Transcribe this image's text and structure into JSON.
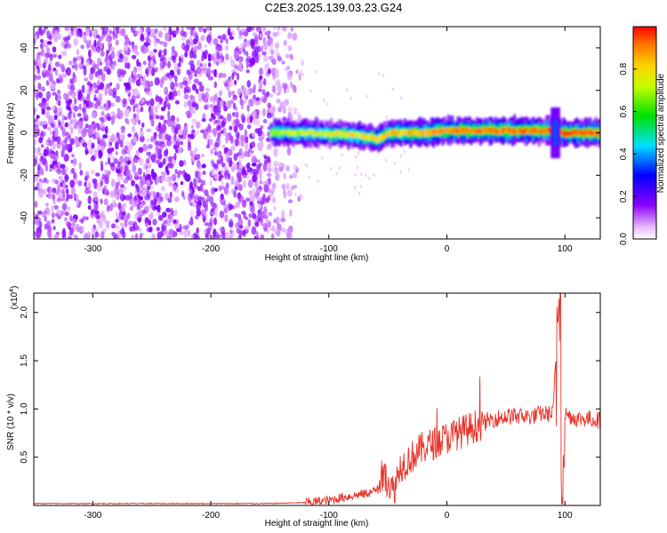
{
  "title": "C2E3.2025.139.03.23.G24",
  "colors": {
    "snr_line": "#e8332a",
    "background": "#ffffff"
  },
  "chart_data": [
    {
      "type": "heatmap",
      "xlabel": "Height of straight line (km)",
      "ylabel": "Frequency (Hz)",
      "xlim": [
        -350,
        130
      ],
      "ylim": [
        -50,
        50
      ],
      "x_ticks": [
        "-300",
        "-200",
        "-100",
        "0",
        "100"
      ],
      "x_tick_values": [
        -300,
        -200,
        -100,
        0,
        100
      ],
      "y_ticks": [
        "-40",
        "-20",
        "0",
        "20",
        "40"
      ],
      "y_tick_values": [
        -40,
        -20,
        0,
        20,
        40
      ],
      "colorbar": {
        "label": "Normalized spectral amplitude",
        "range": [
          0,
          1
        ],
        "ticks": [
          "0.0",
          "0.2",
          "0.4",
          "0.6",
          "0.8"
        ],
        "tick_values": [
          0,
          0.2,
          0.4,
          0.6,
          0.8
        ],
        "colormap": "rainbow (white-violet-blue-cyan-green-yellow-red)"
      },
      "signal_band": {
        "x_start": -150,
        "x_end": 130,
        "center_freq": 0,
        "trace": [
          {
            "x": -150,
            "f": 0,
            "a": 0.45
          },
          {
            "x": -120,
            "f": 0,
            "a": 0.5
          },
          {
            "x": -100,
            "f": -0.5,
            "a": 0.55
          },
          {
            "x": -80,
            "f": -1,
            "a": 0.6
          },
          {
            "x": -60,
            "f": -3,
            "a": 0.65
          },
          {
            "x": -50,
            "f": 0,
            "a": 0.7
          },
          {
            "x": -20,
            "f": 0,
            "a": 0.75
          },
          {
            "x": 0,
            "f": 1,
            "a": 0.85
          },
          {
            "x": 40,
            "f": 1,
            "a": 0.9
          },
          {
            "x": 90,
            "f": 1,
            "a": 0.95
          },
          {
            "x": 95,
            "f": 0,
            "a": 0.9
          },
          {
            "x": 130,
            "f": 0,
            "a": 0.95
          }
        ]
      },
      "noise_region_x": [
        -350,
        -130
      ]
    },
    {
      "type": "line",
      "xlabel": "Height of straight line (km)",
      "ylabel": "SNR (10 * v/v)",
      "y_multiplier_label": "(x10",
      "y_multiplier_exp": "4",
      "y_multiplier_close": ")",
      "xlim": [
        -350,
        130
      ],
      "ylim": [
        0,
        2.2
      ],
      "x_ticks": [
        "-300",
        "-200",
        "-100",
        "0",
        "100"
      ],
      "x_tick_values": [
        -300,
        -200,
        -100,
        0,
        100
      ],
      "y_ticks": [
        "0.5",
        "1.0",
        "1.5",
        "2.0"
      ],
      "y_tick_values": [
        0.5,
        1.0,
        1.5,
        2.0
      ],
      "series": [
        {
          "color": "#e8332a",
          "x": [
            -350,
            -300,
            -250,
            -200,
            -150,
            -120,
            -100,
            -90,
            -80,
            -70,
            -60,
            -55,
            -50,
            -45,
            -40,
            -30,
            -20,
            -10,
            0,
            10,
            20,
            30,
            40,
            50,
            60,
            70,
            80,
            90,
            95,
            97,
            100,
            110,
            120,
            130
          ],
          "y": [
            0.02,
            0.02,
            0.02,
            0.02,
            0.02,
            0.03,
            0.05,
            0.08,
            0.1,
            0.12,
            0.15,
            0.3,
            0.25,
            0.15,
            0.4,
            0.5,
            0.6,
            0.65,
            0.7,
            0.75,
            0.8,
            0.85,
            0.9,
            0.92,
            0.93,
            0.92,
            0.95,
            0.95,
            2.2,
            0.1,
            0.95,
            0.9,
            0.9,
            0.88
          ]
        }
      ]
    }
  ]
}
